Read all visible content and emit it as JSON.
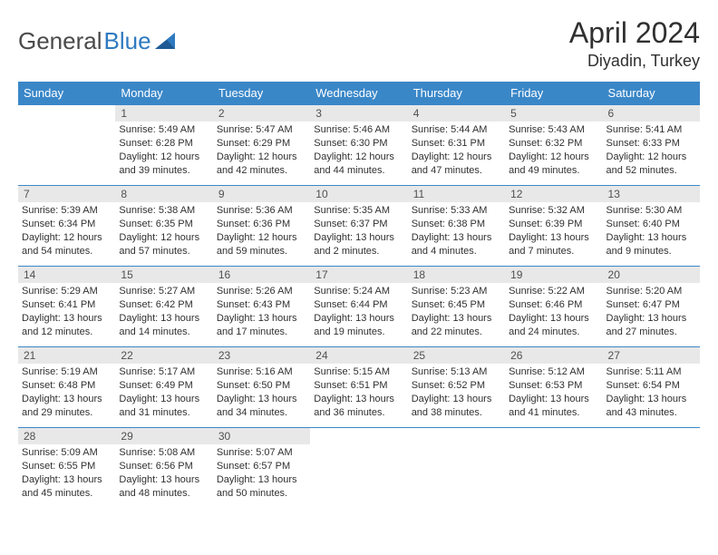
{
  "brand": {
    "part1": "General",
    "part2": "Blue"
  },
  "title": "April 2024",
  "subtitle": "Diyadin, Turkey",
  "columns": [
    "Sunday",
    "Monday",
    "Tuesday",
    "Wednesday",
    "Thursday",
    "Friday",
    "Saturday"
  ],
  "colors": {
    "header_bg": "#3a87c8",
    "header_text": "#ffffff",
    "daynum_bg": "#e8e8e8",
    "cell_border": "#3a87c8",
    "text": "#303030",
    "logo_gray": "#4a4a4a",
    "logo_blue": "#2f7ac0"
  },
  "weeks": [
    [
      null,
      {
        "n": "1",
        "sr": "Sunrise: 5:49 AM",
        "ss": "Sunset: 6:28 PM",
        "d1": "Daylight: 12 hours",
        "d2": "and 39 minutes."
      },
      {
        "n": "2",
        "sr": "Sunrise: 5:47 AM",
        "ss": "Sunset: 6:29 PM",
        "d1": "Daylight: 12 hours",
        "d2": "and 42 minutes."
      },
      {
        "n": "3",
        "sr": "Sunrise: 5:46 AM",
        "ss": "Sunset: 6:30 PM",
        "d1": "Daylight: 12 hours",
        "d2": "and 44 minutes."
      },
      {
        "n": "4",
        "sr": "Sunrise: 5:44 AM",
        "ss": "Sunset: 6:31 PM",
        "d1": "Daylight: 12 hours",
        "d2": "and 47 minutes."
      },
      {
        "n": "5",
        "sr": "Sunrise: 5:43 AM",
        "ss": "Sunset: 6:32 PM",
        "d1": "Daylight: 12 hours",
        "d2": "and 49 minutes."
      },
      {
        "n": "6",
        "sr": "Sunrise: 5:41 AM",
        "ss": "Sunset: 6:33 PM",
        "d1": "Daylight: 12 hours",
        "d2": "and 52 minutes."
      }
    ],
    [
      {
        "n": "7",
        "sr": "Sunrise: 5:39 AM",
        "ss": "Sunset: 6:34 PM",
        "d1": "Daylight: 12 hours",
        "d2": "and 54 minutes."
      },
      {
        "n": "8",
        "sr": "Sunrise: 5:38 AM",
        "ss": "Sunset: 6:35 PM",
        "d1": "Daylight: 12 hours",
        "d2": "and 57 minutes."
      },
      {
        "n": "9",
        "sr": "Sunrise: 5:36 AM",
        "ss": "Sunset: 6:36 PM",
        "d1": "Daylight: 12 hours",
        "d2": "and 59 minutes."
      },
      {
        "n": "10",
        "sr": "Sunrise: 5:35 AM",
        "ss": "Sunset: 6:37 PM",
        "d1": "Daylight: 13 hours",
        "d2": "and 2 minutes."
      },
      {
        "n": "11",
        "sr": "Sunrise: 5:33 AM",
        "ss": "Sunset: 6:38 PM",
        "d1": "Daylight: 13 hours",
        "d2": "and 4 minutes."
      },
      {
        "n": "12",
        "sr": "Sunrise: 5:32 AM",
        "ss": "Sunset: 6:39 PM",
        "d1": "Daylight: 13 hours",
        "d2": "and 7 minutes."
      },
      {
        "n": "13",
        "sr": "Sunrise: 5:30 AM",
        "ss": "Sunset: 6:40 PM",
        "d1": "Daylight: 13 hours",
        "d2": "and 9 minutes."
      }
    ],
    [
      {
        "n": "14",
        "sr": "Sunrise: 5:29 AM",
        "ss": "Sunset: 6:41 PM",
        "d1": "Daylight: 13 hours",
        "d2": "and 12 minutes."
      },
      {
        "n": "15",
        "sr": "Sunrise: 5:27 AM",
        "ss": "Sunset: 6:42 PM",
        "d1": "Daylight: 13 hours",
        "d2": "and 14 minutes."
      },
      {
        "n": "16",
        "sr": "Sunrise: 5:26 AM",
        "ss": "Sunset: 6:43 PM",
        "d1": "Daylight: 13 hours",
        "d2": "and 17 minutes."
      },
      {
        "n": "17",
        "sr": "Sunrise: 5:24 AM",
        "ss": "Sunset: 6:44 PM",
        "d1": "Daylight: 13 hours",
        "d2": "and 19 minutes."
      },
      {
        "n": "18",
        "sr": "Sunrise: 5:23 AM",
        "ss": "Sunset: 6:45 PM",
        "d1": "Daylight: 13 hours",
        "d2": "and 22 minutes."
      },
      {
        "n": "19",
        "sr": "Sunrise: 5:22 AM",
        "ss": "Sunset: 6:46 PM",
        "d1": "Daylight: 13 hours",
        "d2": "and 24 minutes."
      },
      {
        "n": "20",
        "sr": "Sunrise: 5:20 AM",
        "ss": "Sunset: 6:47 PM",
        "d1": "Daylight: 13 hours",
        "d2": "and 27 minutes."
      }
    ],
    [
      {
        "n": "21",
        "sr": "Sunrise: 5:19 AM",
        "ss": "Sunset: 6:48 PM",
        "d1": "Daylight: 13 hours",
        "d2": "and 29 minutes."
      },
      {
        "n": "22",
        "sr": "Sunrise: 5:17 AM",
        "ss": "Sunset: 6:49 PM",
        "d1": "Daylight: 13 hours",
        "d2": "and 31 minutes."
      },
      {
        "n": "23",
        "sr": "Sunrise: 5:16 AM",
        "ss": "Sunset: 6:50 PM",
        "d1": "Daylight: 13 hours",
        "d2": "and 34 minutes."
      },
      {
        "n": "24",
        "sr": "Sunrise: 5:15 AM",
        "ss": "Sunset: 6:51 PM",
        "d1": "Daylight: 13 hours",
        "d2": "and 36 minutes."
      },
      {
        "n": "25",
        "sr": "Sunrise: 5:13 AM",
        "ss": "Sunset: 6:52 PM",
        "d1": "Daylight: 13 hours",
        "d2": "and 38 minutes."
      },
      {
        "n": "26",
        "sr": "Sunrise: 5:12 AM",
        "ss": "Sunset: 6:53 PM",
        "d1": "Daylight: 13 hours",
        "d2": "and 41 minutes."
      },
      {
        "n": "27",
        "sr": "Sunrise: 5:11 AM",
        "ss": "Sunset: 6:54 PM",
        "d1": "Daylight: 13 hours",
        "d2": "and 43 minutes."
      }
    ],
    [
      {
        "n": "28",
        "sr": "Sunrise: 5:09 AM",
        "ss": "Sunset: 6:55 PM",
        "d1": "Daylight: 13 hours",
        "d2": "and 45 minutes."
      },
      {
        "n": "29",
        "sr": "Sunrise: 5:08 AM",
        "ss": "Sunset: 6:56 PM",
        "d1": "Daylight: 13 hours",
        "d2": "and 48 minutes."
      },
      {
        "n": "30",
        "sr": "Sunrise: 5:07 AM",
        "ss": "Sunset: 6:57 PM",
        "d1": "Daylight: 13 hours",
        "d2": "and 50 minutes."
      },
      null,
      null,
      null,
      null
    ]
  ]
}
